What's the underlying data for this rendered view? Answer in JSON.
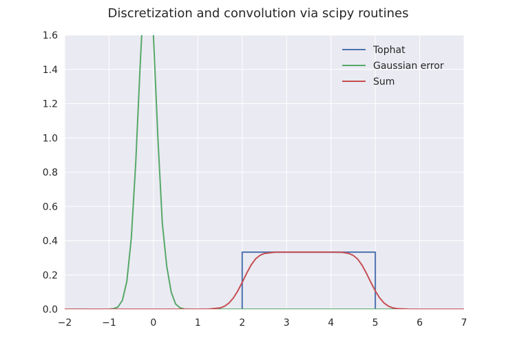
{
  "chart_data": {
    "type": "line",
    "title": "Discretization and convolution via scipy routines",
    "xlabel": "",
    "ylabel": "",
    "xlim": [
      -2,
      7
    ],
    "ylim": [
      0.0,
      1.6
    ],
    "x_ticks": [
      "−2",
      "−1",
      "0",
      "1",
      "2",
      "3",
      "4",
      "5",
      "6",
      "7"
    ],
    "y_ticks": [
      "0.0",
      "0.2",
      "0.4",
      "0.6",
      "0.8",
      "1.0",
      "1.2",
      "1.4",
      "1.6"
    ],
    "grid": true,
    "legend_position": "top-right",
    "background_color": "#eaeaf2",
    "series": [
      {
        "name": "Tophat",
        "color": "#4c72b0",
        "x": [
          -2,
          2,
          2,
          5,
          5,
          7
        ],
        "y": [
          0,
          0,
          0.333,
          0.333,
          0,
          0
        ]
      },
      {
        "name": "Gaussian error",
        "color": "#55a868",
        "x": [
          -2,
          -1,
          -0.9,
          -0.8,
          -0.7,
          -0.6,
          -0.5,
          -0.4,
          -0.3,
          -0.2,
          -0.1,
          0,
          0.1,
          0.2,
          0.3,
          0.4,
          0.5,
          0.6,
          0.7,
          0.8,
          0.9,
          1,
          7
        ],
        "y": [
          0,
          0.0005,
          0.0028,
          0.0134,
          0.0519,
          0.1627,
          0.4133,
          0.8516,
          1.4217,
          1.9267,
          2.1148,
          1.596,
          1.0,
          0.5,
          0.25,
          0.1,
          0.03,
          0.008,
          0.001,
          0.0003,
          0.0001,
          0.0,
          0.0
        ]
      },
      {
        "name": "Sum",
        "color": "#c44e52",
        "x": [
          -2,
          1.0,
          1.25,
          1.5,
          1.6,
          1.7,
          1.8,
          1.9,
          2.0,
          2.1,
          2.2,
          2.3,
          2.4,
          2.5,
          2.75,
          3.0,
          4.0,
          4.25,
          4.4,
          4.5,
          4.6,
          4.7,
          4.8,
          4.9,
          5.0,
          5.1,
          5.2,
          5.3,
          5.4,
          5.5,
          5.75,
          6.0,
          7
        ],
        "y": [
          0,
          0.0,
          0.001,
          0.0075,
          0.0173,
          0.0356,
          0.0653,
          0.1066,
          0.1567,
          0.2098,
          0.2578,
          0.2933,
          0.3147,
          0.3255,
          0.3332,
          0.3333,
          0.3333,
          0.332,
          0.3255,
          0.3147,
          0.2933,
          0.2578,
          0.2098,
          0.1567,
          0.1066,
          0.0653,
          0.0356,
          0.0173,
          0.0075,
          0.003,
          0.0003,
          0.0,
          0
        ]
      }
    ]
  }
}
